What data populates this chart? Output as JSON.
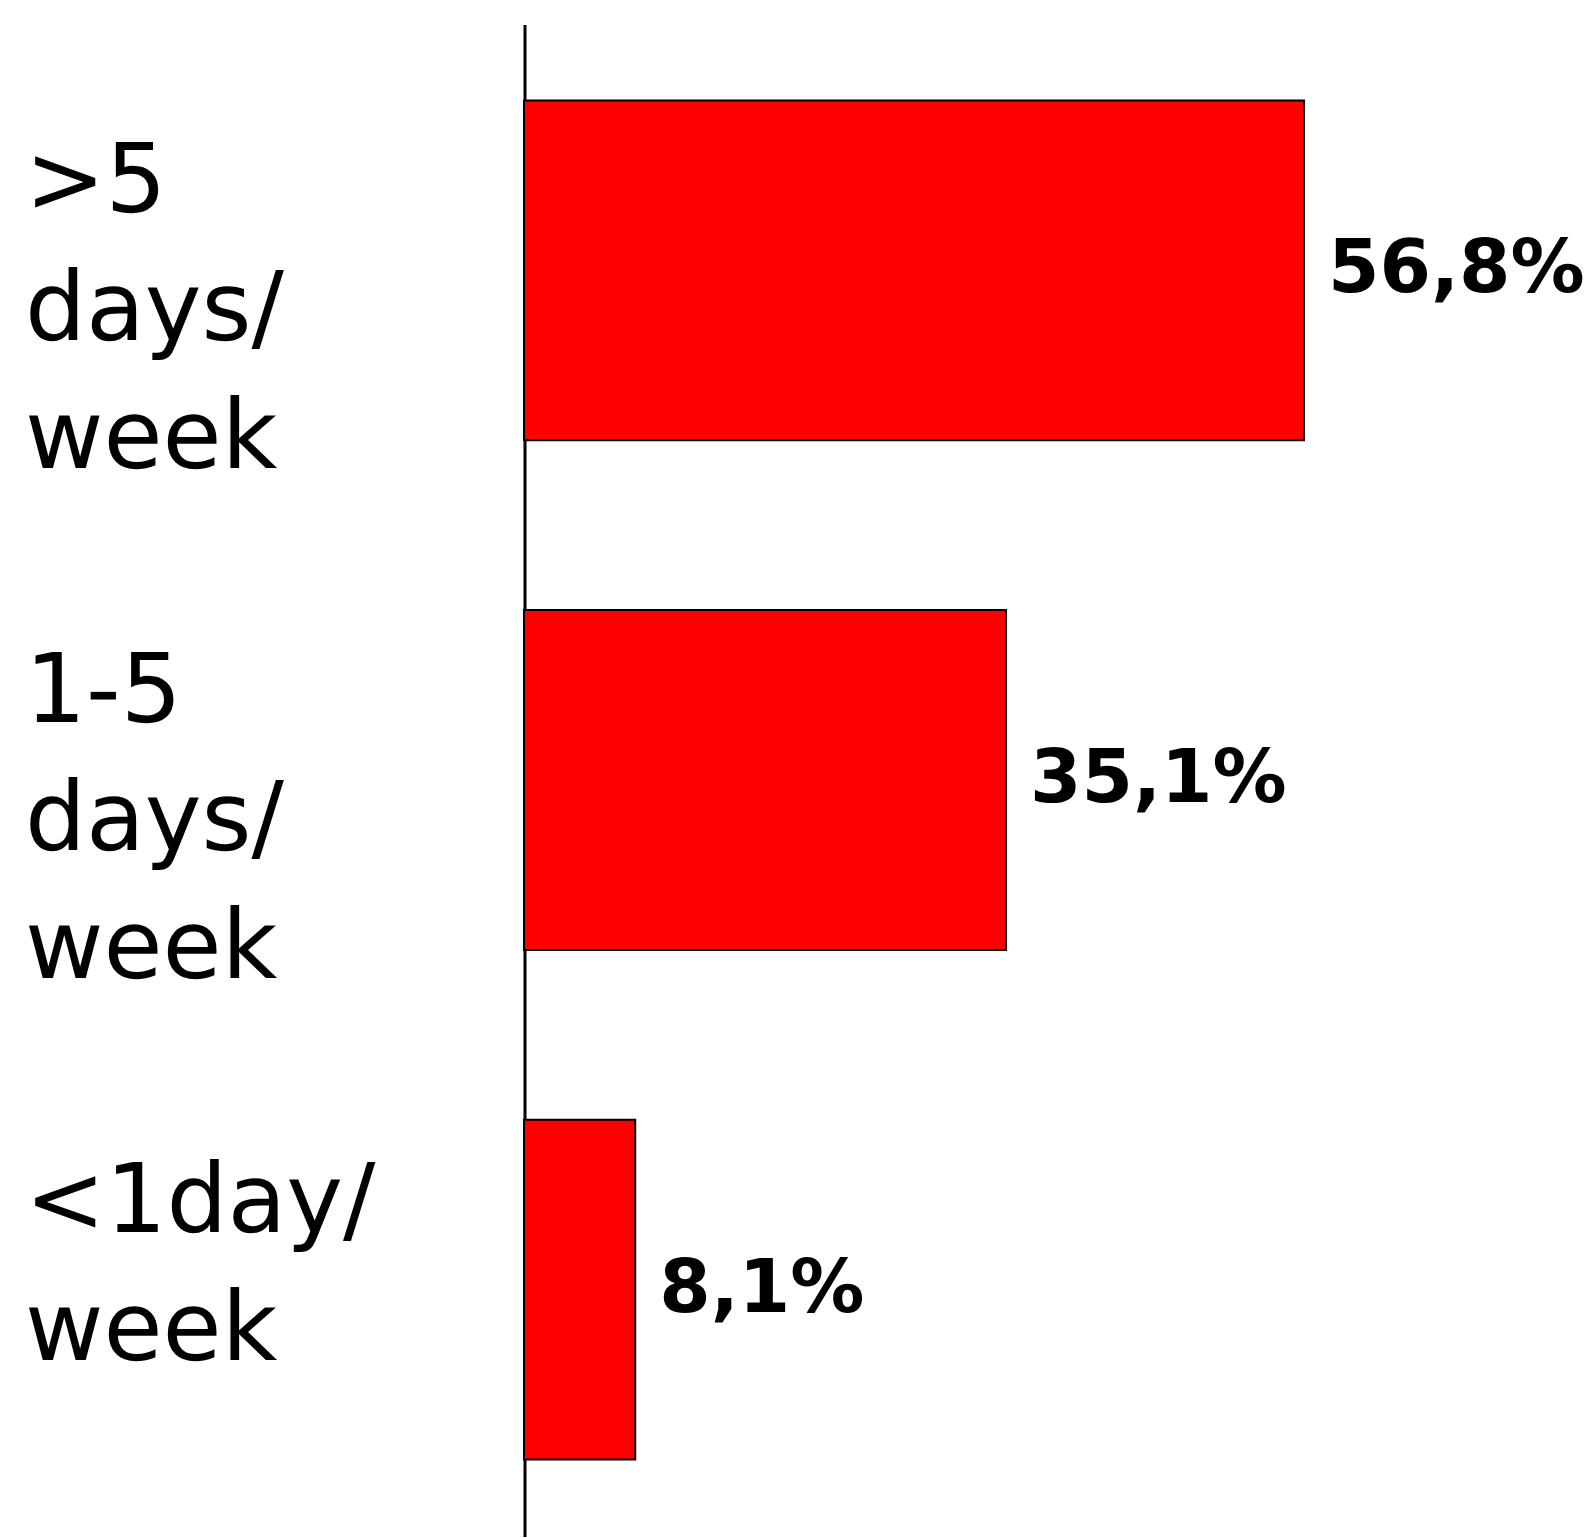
{
  "chart_data": {
    "type": "bar",
    "orientation": "horizontal",
    "categories": [
      ">5 days/week",
      "1-5 days/week",
      "<1day/week"
    ],
    "values": [
      56.8,
      35.1,
      8.1
    ],
    "color": "#ff0000",
    "value_labels": [
      "56,8%",
      "35,1%",
      "8,1%"
    ]
  }
}
